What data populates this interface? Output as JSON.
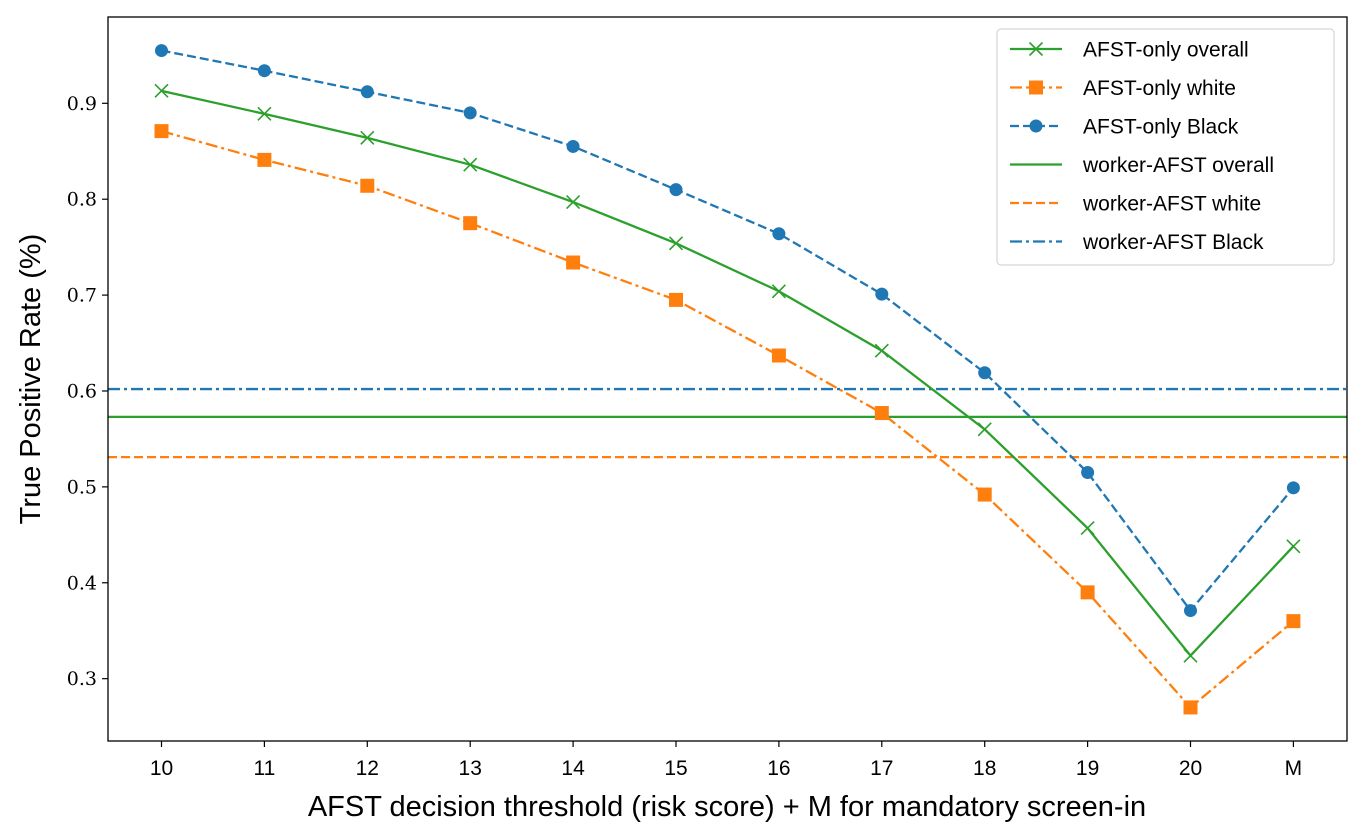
{
  "chart_data": {
    "type": "line",
    "xlabel": "AFST decision threshold (risk score) + M for mandatory screen-in",
    "ylabel": "True Positive Rate (%)",
    "categories": [
      "10",
      "11",
      "12",
      "13",
      "14",
      "15",
      "16",
      "17",
      "18",
      "19",
      "20",
      "M"
    ],
    "ylim": [
      0.235,
      0.99
    ],
    "yticks": [
      0.3,
      0.4,
      0.5,
      0.6,
      0.7,
      0.8,
      0.9
    ],
    "ytick_labels": [
      "0.3",
      "0.4",
      "0.5",
      "0.6",
      "0.7",
      "0.8",
      "0.9"
    ],
    "grid": false,
    "legend_position": "top-right",
    "series": [
      {
        "name": "AFST-only overall",
        "color": "#2ca02c",
        "linestyle": "solid",
        "marker": "x",
        "values": [
          0.913,
          0.889,
          0.864,
          0.836,
          0.797,
          0.754,
          0.704,
          0.642,
          0.56,
          0.457,
          0.324,
          0.438
        ]
      },
      {
        "name": "AFST-only white",
        "color": "#ff7f0e",
        "linestyle": "dashdot",
        "marker": "square",
        "values": [
          0.871,
          0.841,
          0.814,
          0.775,
          0.734,
          0.695,
          0.637,
          0.577,
          0.492,
          0.39,
          0.27,
          0.36
        ]
      },
      {
        "name": "AFST-only Black",
        "color": "#1f77b4",
        "linestyle": "dashed",
        "marker": "circle",
        "values": [
          0.955,
          0.934,
          0.912,
          0.89,
          0.855,
          0.81,
          0.764,
          0.701,
          0.619,
          0.515,
          0.371,
          0.499
        ]
      }
    ],
    "reference_lines": [
      {
        "name": "worker-AFST overall",
        "color": "#2ca02c",
        "linestyle": "solid",
        "value": 0.573
      },
      {
        "name": "worker-AFST white",
        "color": "#ff7f0e",
        "linestyle": "dashed",
        "value": 0.531
      },
      {
        "name": "worker-AFST Black",
        "color": "#1f77b4",
        "linestyle": "dashdot",
        "value": 0.602
      }
    ]
  }
}
